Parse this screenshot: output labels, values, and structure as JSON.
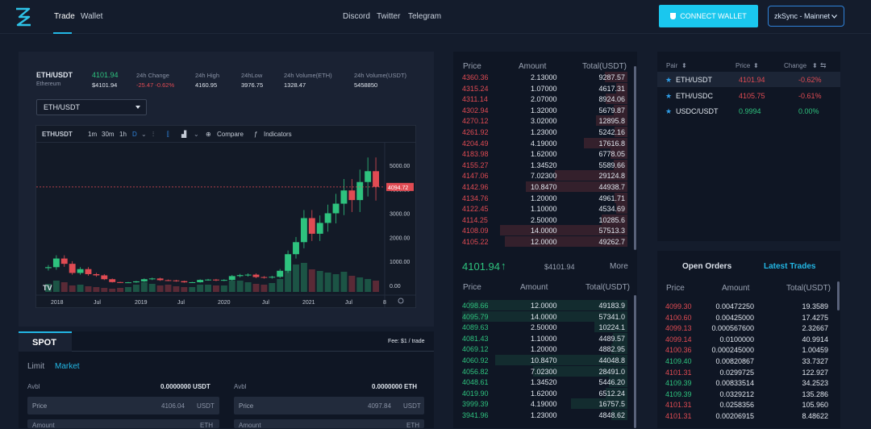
{
  "nav": {
    "links": [
      "Trade",
      "Wallet"
    ],
    "center_links": [
      "Discord",
      "Twitter",
      "Telegram"
    ],
    "connect_label": "CONNECT WALLET",
    "network": "zkSync - Mainnet"
  },
  "ticker": {
    "pair": "ETH/USDT",
    "asset": "Ethereum",
    "price_main": "4101.94",
    "price_sub": "$4101.94",
    "change_label": "24h Change",
    "change_value": "-25.47 -0.62%",
    "high_label": "24h High",
    "high_value": "4160.95",
    "low_label": "24hLow",
    "low_value": "3976.75",
    "vol_eth_label": "24h Volume(ETH)",
    "vol_eth_value": "1328.47",
    "vol_usdt_label": "24h Volume(USDT)",
    "vol_usdt_value": "5458850"
  },
  "pair_select": "ETH/USDT",
  "chart_toolbar": {
    "symbol": "ETHUSDT",
    "intervals": [
      "1m",
      "30m",
      "1h",
      "D"
    ],
    "compare": "Compare",
    "indicators": "Indicators"
  },
  "chart_data": {
    "type": "candlestick",
    "x_ticks": [
      "2018",
      "Jul",
      "2019",
      "Jul",
      "2020",
      "Jul",
      "2021",
      "Jul",
      "8"
    ],
    "y_ticks": [
      "5000.00",
      "4000.00",
      "3000.00",
      "2000.00",
      "1000.00",
      "0.00"
    ],
    "ylim": [
      0,
      5400
    ],
    "last_price_label": "4094.72",
    "last_price": 4094.72,
    "monthly_close": [
      760,
      1120,
      900,
      520,
      680,
      470,
      420,
      260,
      140,
      120,
      130,
      170,
      260,
      290,
      220,
      210,
      180,
      130,
      135,
      230,
      245,
      210,
      230,
      390,
      430,
      450,
      350,
      330,
      360,
      610,
      1300,
      1800,
      2800,
      2150,
      2600,
      3000,
      3400,
      3950,
      3550,
      4300,
      4750,
      4101
    ],
    "monthly_volume": [
      10,
      14,
      12,
      8,
      9,
      7,
      6,
      5,
      4,
      5,
      6,
      9,
      12,
      10,
      8,
      9,
      7,
      6,
      6,
      9,
      9,
      8,
      8,
      14,
      14,
      12,
      10,
      9,
      11,
      16,
      30,
      34,
      36,
      28,
      26,
      24,
      22,
      25,
      20,
      18,
      16,
      14
    ]
  },
  "spot": {
    "title": "SPOT",
    "fee": "Fee: $1 / trade",
    "tab_limit": "Limit",
    "tab_market": "Market",
    "avbl": "Avbl",
    "buy_avbl": "0.0000000 USDT",
    "sell_avbl": "0.0000000 ETH",
    "price_label": "Price",
    "buy_price": "4106.04",
    "sell_price": "4097.84",
    "unit_usdt": "USDT",
    "amount_label": "Amount",
    "unit_eth": "ETH"
  },
  "orderbook": {
    "headers": [
      "Price",
      "Amount",
      "Total(USDT)"
    ],
    "asks": [
      {
        "price": "4360.36",
        "amount": "2.13000",
        "total": "9287.57",
        "depth": 0.18
      },
      {
        "price": "4315.24",
        "amount": "1.07000",
        "total": "4617.31",
        "depth": 0.09
      },
      {
        "price": "4311.14",
        "amount": "2.07000",
        "total": "8924.06",
        "depth": 0.17
      },
      {
        "price": "4302.94",
        "amount": "1.32000",
        "total": "5679.87",
        "depth": 0.11
      },
      {
        "price": "4270.12",
        "amount": "3.02000",
        "total": "12895.8",
        "depth": 0.25
      },
      {
        "price": "4261.92",
        "amount": "1.23000",
        "total": "5242.16",
        "depth": 0.1
      },
      {
        "price": "4204.49",
        "amount": "4.19000",
        "total": "17616.8",
        "depth": 0.34
      },
      {
        "price": "4183.98",
        "amount": "1.62000",
        "total": "6778.05",
        "depth": 0.13
      },
      {
        "price": "4155.27",
        "amount": "1.34520",
        "total": "5589.66",
        "depth": 0.11
      },
      {
        "price": "4147.06",
        "amount": "7.02300",
        "total": "29124.8",
        "depth": 0.57
      },
      {
        "price": "4142.96",
        "amount": "10.8470",
        "total": "44938.7",
        "depth": 0.8
      },
      {
        "price": "4134.76",
        "amount": "1.20000",
        "total": "4961.71",
        "depth": 0.1
      },
      {
        "price": "4122.45",
        "amount": "1.10000",
        "total": "4534.69",
        "depth": 0.09
      },
      {
        "price": "4114.25",
        "amount": "2.50000",
        "total": "10285.6",
        "depth": 0.2
      },
      {
        "price": "4108.09",
        "amount": "14.0000",
        "total": "57513.3",
        "depth": 1.0
      },
      {
        "price": "4105.22",
        "amount": "12.0000",
        "total": "49262.7",
        "depth": 0.96
      }
    ],
    "mid_price": "4101.94",
    "mid_usd": "$4101.94",
    "more": "More",
    "bids": [
      {
        "price": "4098.66",
        "amount": "12.0000",
        "total": "49183.9",
        "depth": 0.96
      },
      {
        "price": "4095.79",
        "amount": "14.0000",
        "total": "57341.0",
        "depth": 1.0
      },
      {
        "price": "4089.63",
        "amount": "2.50000",
        "total": "10224.1",
        "depth": 0.2
      },
      {
        "price": "4081.43",
        "amount": "1.10000",
        "total": "4489.57",
        "depth": 0.09
      },
      {
        "price": "4069.12",
        "amount": "1.20000",
        "total": "4882.95",
        "depth": 0.1
      },
      {
        "price": "4060.92",
        "amount": "10.8470",
        "total": "44048.8",
        "depth": 0.8
      },
      {
        "price": "4056.82",
        "amount": "7.02300",
        "total": "28491.0",
        "depth": 0.57
      },
      {
        "price": "4048.61",
        "amount": "1.34520",
        "total": "5446.20",
        "depth": 0.11
      },
      {
        "price": "4019.90",
        "amount": "1.62000",
        "total": "6512.24",
        "depth": 0.13
      },
      {
        "price": "3999.39",
        "amount": "4.19000",
        "total": "16757.5",
        "depth": 0.34
      },
      {
        "price": "3941.96",
        "amount": "1.23000",
        "total": "4848.62",
        "depth": 0.1
      }
    ]
  },
  "pairs": {
    "headers": [
      "Pair",
      "Price",
      "Change"
    ],
    "rows": [
      {
        "pair": "ETH/USDT",
        "price": "4101.94",
        "change": "-0.62%",
        "up": false
      },
      {
        "pair": "ETH/USDC",
        "price": "4105.75",
        "change": "-0.61%",
        "up": false
      },
      {
        "pair": "USDC/USDT",
        "price": "0.9994",
        "change": "0.00%",
        "up": true
      }
    ]
  },
  "trades": {
    "tab_open": "Open Orders",
    "tab_latest": "Latest Trades",
    "headers": [
      "Price",
      "Amount",
      "Total(USDT)"
    ],
    "rows": [
      {
        "price": "4099.30",
        "amount": "0.00472250",
        "total": "19.3589",
        "up": false
      },
      {
        "price": "4100.60",
        "amount": "0.00425000",
        "total": "17.4275",
        "up": false
      },
      {
        "price": "4099.13",
        "amount": "0.000567600",
        "total": "2.32667",
        "up": false
      },
      {
        "price": "4099.14",
        "amount": "0.0100000",
        "total": "40.9914",
        "up": false
      },
      {
        "price": "4100.36",
        "amount": "0.000245000",
        "total": "1.00459",
        "up": false
      },
      {
        "price": "4109.40",
        "amount": "0.00820867",
        "total": "33.7327",
        "up": true
      },
      {
        "price": "4101.31",
        "amount": "0.0299725",
        "total": "122.927",
        "up": false
      },
      {
        "price": "4109.39",
        "amount": "0.00833514",
        "total": "34.2523",
        "up": true
      },
      {
        "price": "4109.39",
        "amount": "0.0329212",
        "total": "135.286",
        "up": true
      },
      {
        "price": "4101.31",
        "amount": "0.0258356",
        "total": "105.960",
        "up": false
      },
      {
        "price": "4101.31",
        "amount": "0.00206915",
        "total": "8.48622",
        "up": false
      }
    ]
  }
}
